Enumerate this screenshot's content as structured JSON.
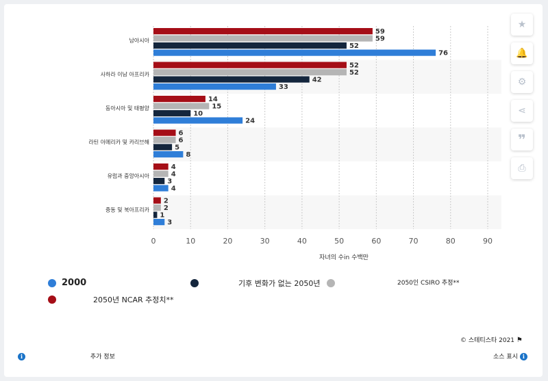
{
  "chart_data": {
    "type": "bar",
    "orientation": "horizontal",
    "categories": [
      "남아시아",
      "사하라 이남 아프리카",
      "동아시아 및 태평양",
      "라틴 아메리카 및 카리브해",
      "유럽과 중앙아시아",
      "중동 및 북아프리카"
    ],
    "series": [
      {
        "name": "2050년 NCAR 추정치**",
        "color": "#a50e17",
        "values": [
          59,
          52,
          14,
          6,
          4,
          2
        ]
      },
      {
        "name": "2050인 CSIRO 추정**",
        "color": "#b5b5b5",
        "values": [
          59,
          52,
          15,
          6,
          4,
          2
        ]
      },
      {
        "name": "기후 변화가 없는 2050년",
        "color": "#14263d",
        "values": [
          52,
          42,
          10,
          5,
          3,
          1
        ]
      },
      {
        "name": "2000",
        "color": "#2f7ed8",
        "values": [
          76,
          33,
          24,
          8,
          4,
          3
        ]
      }
    ],
    "xlim": [
      0,
      90
    ],
    "xticks": [
      0,
      10,
      20,
      30,
      40,
      50,
      60,
      70,
      80,
      90
    ],
    "xlabel": "자녀의 수in    수백만",
    "grid": true,
    "legend_position": "bottom"
  },
  "legend": [
    {
      "label": "2000",
      "color": "#2f7ed8"
    },
    {
      "label": "기후 변화가 없는 2050년",
      "color": "#14263d"
    },
    {
      "label": "2050인 CSIRO 추정**",
      "color": "#b5b5b5"
    },
    {
      "label": "2050년 NCAR 추정치**",
      "color": "#a50e17"
    }
  ],
  "footer": {
    "copyright": "© 스테티스타 2021",
    "more_info": "추가 정보",
    "source": "소스 표시"
  },
  "sidebar": {
    "icons": [
      "star-icon",
      "bell-icon",
      "gear-icon",
      "share-icon",
      "quote-icon",
      "print-icon"
    ]
  }
}
